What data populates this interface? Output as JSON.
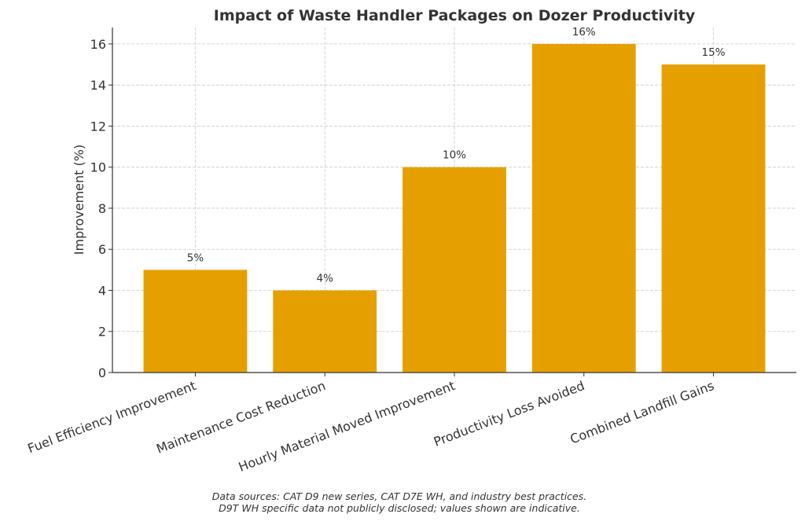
{
  "chart_data": {
    "type": "bar",
    "title": "Impact of Waste Handler Packages on Dozer Productivity",
    "xlabel": "",
    "ylabel": "Improvement (%)",
    "categories": [
      "Fuel Efficiency Improvement",
      "Maintenance Cost Reduction",
      "Hourly Material Moved Improvement",
      "Productivity Loss Avoided",
      "Combined Landfill Gains"
    ],
    "values": [
      5,
      4,
      10,
      16,
      15
    ],
    "data_labels": [
      "5%",
      "4%",
      "10%",
      "16%",
      "15%"
    ],
    "ylim": [
      0,
      16.8
    ],
    "yticks": [
      0,
      2,
      4,
      6,
      8,
      10,
      12,
      14,
      16
    ],
    "grid": true,
    "bar_color": "#E5A000",
    "footnote": [
      "Data sources: CAT D9 new series, CAT D7E WH, and industry best practices.",
      "D9T WH specific data not publicly disclosed; values shown are indicative."
    ]
  }
}
